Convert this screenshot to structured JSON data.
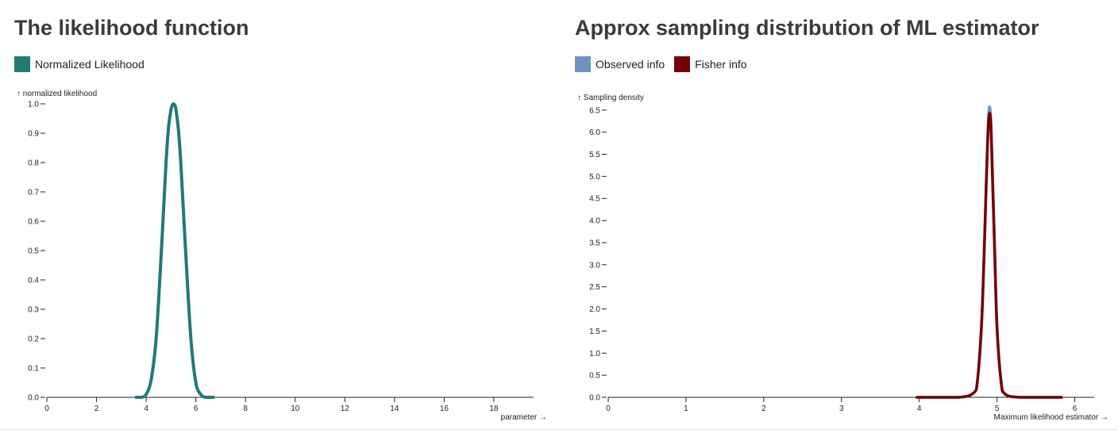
{
  "left": {
    "title": "The likelihood function",
    "legend": [
      {
        "label": "Normalized Likelihood",
        "color": "#1f7a78"
      }
    ]
  },
  "right": {
    "title": "Approx sampling distribution of ML estimator",
    "legend": [
      {
        "label": "Observed info",
        "color": "#6e93c2"
      },
      {
        "label": "Fisher info",
        "color": "#760000"
      }
    ]
  },
  "chart_data": [
    {
      "type": "line",
      "title": "The likelihood function",
      "xlabel": "parameter →",
      "ylabel": "↑ normalized likelihood",
      "xlim": [
        0,
        19.6
      ],
      "ylim": [
        0,
        1.0
      ],
      "x_ticks": [
        0,
        2,
        4,
        6,
        8,
        10,
        12,
        14,
        16,
        18
      ],
      "y_ticks": [
        0.0,
        0.1,
        0.2,
        0.3,
        0.4,
        0.5,
        0.6,
        0.7,
        0.8,
        0.9,
        1.0
      ],
      "grid": false,
      "legend_position": "top-left",
      "series": [
        {
          "name": "Normalized Likelihood",
          "color": "#1f7a78",
          "x": [
            3.6,
            3.8,
            4.0,
            4.2,
            4.4,
            4.6,
            4.8,
            4.9,
            5.0,
            5.05,
            5.1,
            5.15,
            5.2,
            5.3,
            5.4,
            5.6,
            5.8,
            6.0,
            6.2,
            6.4,
            6.7
          ],
          "y": [
            0.0,
            0.0,
            0.01,
            0.06,
            0.2,
            0.48,
            0.8,
            0.92,
            0.98,
            0.995,
            1.0,
            0.995,
            0.98,
            0.91,
            0.79,
            0.48,
            0.2,
            0.05,
            0.01,
            0.0,
            0.0
          ]
        }
      ]
    },
    {
      "type": "line",
      "title": "Approx sampling distribution of ML estimator",
      "xlabel": "Maximum likelihood estimator →",
      "ylabel": "↑ Sampling density",
      "xlim": [
        0,
        6.25
      ],
      "ylim": [
        0,
        6.55
      ],
      "x_ticks": [
        0,
        1,
        2,
        3,
        4,
        5,
        6
      ],
      "y_ticks": [
        0.0,
        0.5,
        1.0,
        1.5,
        2.0,
        2.5,
        3.0,
        3.5,
        4.0,
        4.5,
        5.0,
        5.5,
        6.0,
        6.5
      ],
      "grid": false,
      "legend_position": "top-left",
      "series": [
        {
          "name": "Observed info",
          "color": "#6e93c2",
          "x": [
            3.97,
            4.5,
            4.7,
            4.75,
            4.8,
            4.83,
            4.86,
            4.88,
            4.9,
            4.92,
            4.94,
            4.97,
            5.0,
            5.05,
            5.1,
            5.3,
            5.83
          ],
          "y": [
            0.0,
            0.0,
            0.1,
            0.4,
            1.6,
            3.0,
            4.8,
            5.9,
            6.55,
            6.3,
            5.2,
            3.4,
            1.6,
            0.4,
            0.08,
            0.0,
            0.0
          ]
        },
        {
          "name": "Fisher info",
          "color": "#760000",
          "x": [
            3.97,
            4.5,
            4.7,
            4.75,
            4.8,
            4.83,
            4.86,
            4.88,
            4.9,
            4.92,
            4.94,
            4.97,
            5.0,
            5.05,
            5.1,
            5.3,
            5.83
          ],
          "y": [
            0.0,
            0.0,
            0.1,
            0.4,
            1.6,
            3.0,
            4.7,
            5.8,
            6.4,
            6.2,
            5.1,
            3.3,
            1.6,
            0.4,
            0.08,
            0.0,
            0.0
          ]
        }
      ]
    }
  ]
}
